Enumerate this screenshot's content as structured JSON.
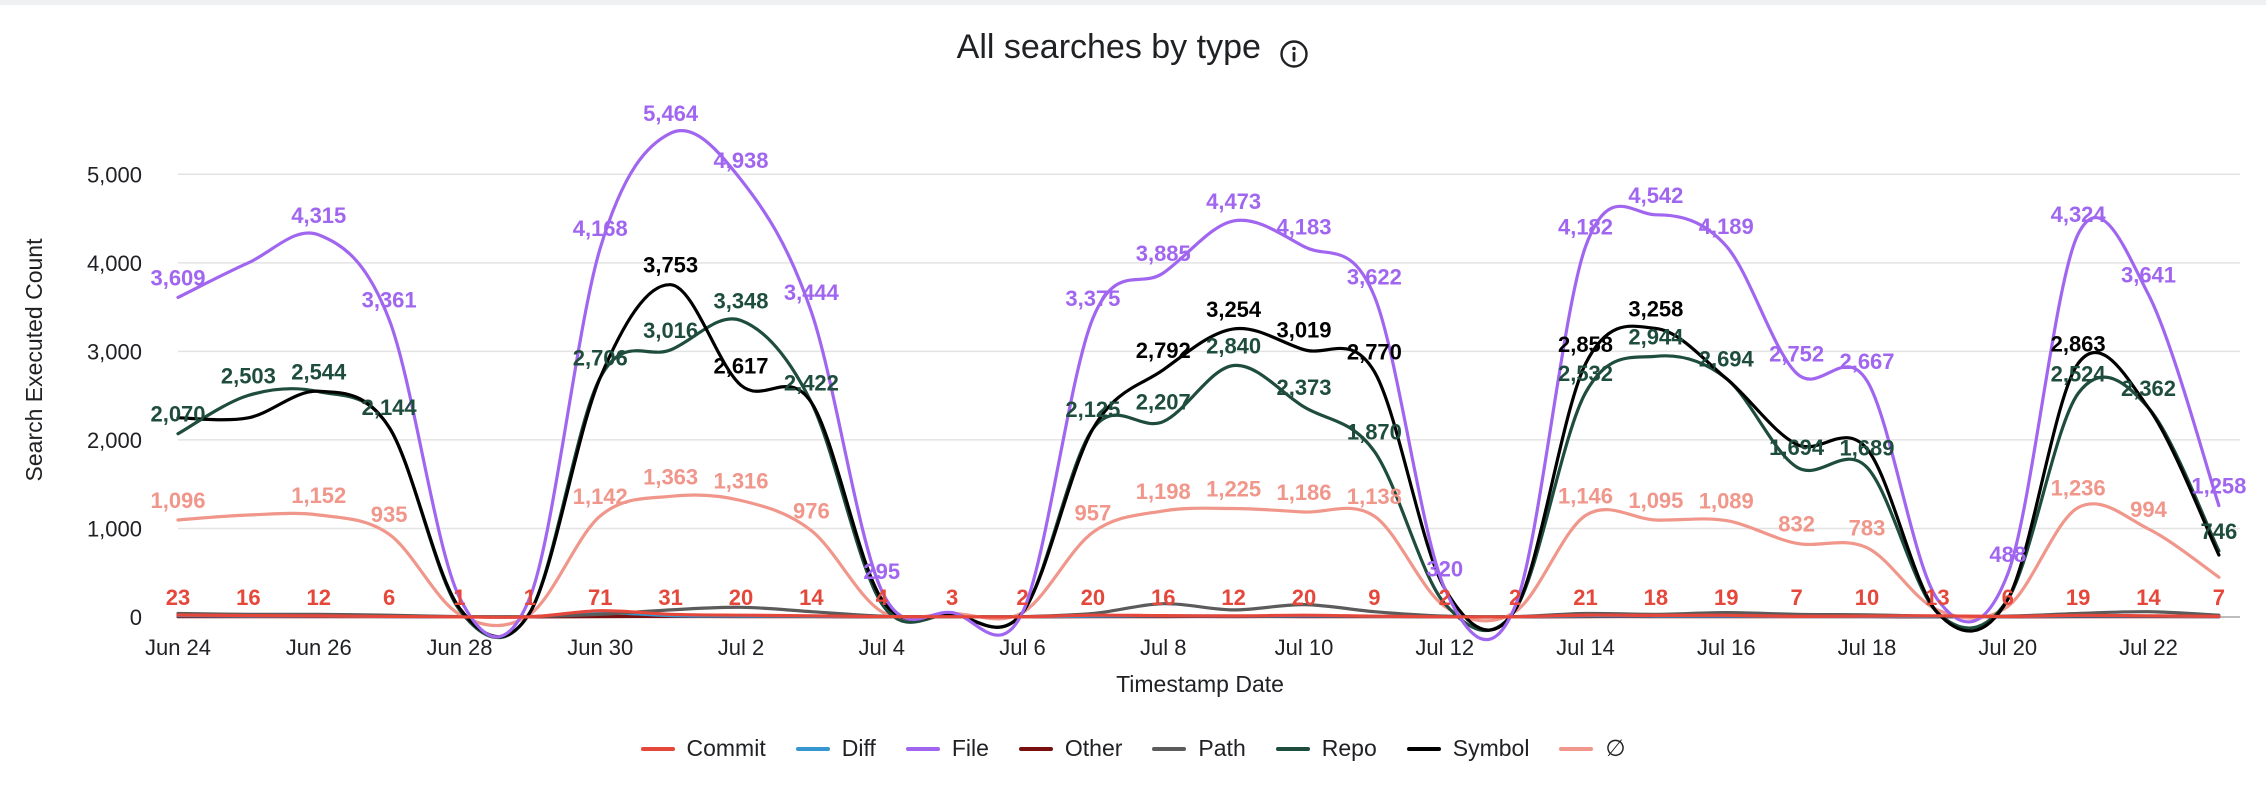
{
  "chart_data": {
    "type": "line",
    "title": "All searches by type",
    "xlabel": "Timestamp Date",
    "ylabel": "Search Executed Count",
    "ylim": [
      0,
      5500
    ],
    "yticks": [
      0,
      1000,
      2000,
      3000,
      4000,
      5000
    ],
    "ytick_labels": [
      "0",
      "1,000",
      "2,000",
      "3,000",
      "4,000",
      "5,000"
    ],
    "x_day_range": [
      0,
      29.3
    ],
    "xtick_days": [
      0,
      2,
      4,
      6,
      8,
      10,
      12,
      14,
      16,
      18,
      20,
      22,
      24,
      26,
      28
    ],
    "xtick_labels": [
      "Jun 24",
      "Jun 26",
      "Jun 28",
      "Jun 30",
      "Jul 2",
      "Jul 4",
      "Jul 6",
      "Jul 8",
      "Jul 10",
      "Jul 12",
      "Jul 14",
      "Jul 16",
      "Jul 18",
      "Jul 20",
      "Jul 22"
    ],
    "days": [
      "Jun 24",
      "Jun 25",
      "Jun 26",
      "Jun 27",
      "Jun 28",
      "Jun 29",
      "Jun 30",
      "Jul 1",
      "Jul 2",
      "Jul 3",
      "Jul 4",
      "Jul 5",
      "Jul 6",
      "Jul 7",
      "Jul 8",
      "Jul 9",
      "Jul 10",
      "Jul 11",
      "Jul 12",
      "Jul 13",
      "Jul 14",
      "Jul 15",
      "Jul 16",
      "Jul 17",
      "Jul 18",
      "Jul 19",
      "Jul 20",
      "Jul 21",
      "Jul 22",
      "Jul 23"
    ],
    "legend_position": "bottom",
    "series": [
      {
        "name": "File",
        "color": "#a166f0",
        "labeled": true,
        "values": [
          3609,
          4000,
          4315,
          3361,
          220,
          220,
          4168,
          5464,
          4938,
          3444,
          295,
          50,
          50,
          3375,
          3885,
          4473,
          4183,
          3622,
          320,
          120,
          4182,
          4542,
          4189,
          2752,
          2667,
          200,
          488,
          4324,
          3641,
          1258
        ],
        "labels": [
          "3,609",
          "",
          "4,315",
          "3,361",
          "",
          "",
          "4,168",
          "5,464",
          "4,938",
          "3,444",
          "295",
          "",
          "",
          "3,375",
          "3,885",
          "4,473",
          "4,183",
          "3,622",
          "320",
          "",
          "4,182",
          "4,542",
          "4,189",
          "2,752",
          "2,667",
          "",
          "488",
          "4,324",
          "3,641",
          "1,258"
        ]
      },
      {
        "name": "Symbol",
        "color": "#000000",
        "labeled": true,
        "values": [
          2250,
          2250,
          2550,
          2144,
          100,
          50,
          2706,
          3753,
          2617,
          2422,
          200,
          30,
          50,
          2125,
          2792,
          3254,
          3019,
          2770,
          320,
          80,
          2858,
          3258,
          2694,
          1950,
          1900,
          50,
          200,
          2863,
          2362,
          700
        ],
        "labels": [
          "",
          "",
          "",
          "",
          "",
          "",
          "",
          "3,753",
          "2,617",
          "",
          "",
          "",
          "",
          "",
          "2,792",
          "3,254",
          "3,019",
          "2,770",
          "",
          "",
          "2,858",
          "3,258",
          "",
          "",
          "",
          "",
          "",
          "2,863",
          "",
          ""
        ]
      },
      {
        "name": "Repo",
        "color": "#1f4d3d",
        "labeled": true,
        "values": [
          2070,
          2503,
          2544,
          2144,
          80,
          50,
          2706,
          3016,
          3348,
          2422,
          150,
          30,
          50,
          2125,
          2207,
          2840,
          2373,
          1870,
          150,
          80,
          2532,
          2944,
          2694,
          1694,
          1689,
          50,
          200,
          2524,
          2362,
          746
        ],
        "labels": [
          "2,070",
          "2,503",
          "2,544",
          "2,144",
          "",
          "",
          "2,706",
          "3,016",
          "3,348",
          "2,422",
          "",
          "",
          "",
          "2,125",
          "2,207",
          "2,840",
          "2,373",
          "1,870",
          "",
          "",
          "2,532",
          "2,944",
          "2,694",
          "1,694",
          "1,689",
          "",
          "",
          "2,524",
          "2,362",
          "746"
        ]
      },
      {
        "name": "∅",
        "color": "#f0968a",
        "labeled": true,
        "values": [
          1096,
          1152,
          1152,
          935,
          30,
          30,
          1142,
          1363,
          1316,
          976,
          60,
          40,
          50,
          957,
          1198,
          1225,
          1186,
          1138,
          120,
          60,
          1146,
          1095,
          1089,
          832,
          783,
          80,
          120,
          1236,
          994,
          450
        ],
        "labels": [
          "1,096",
          "",
          "1,152",
          "935",
          "",
          "",
          "1,142",
          "1,363",
          "1,316",
          "976",
          "",
          "",
          "",
          "957",
          "1,198",
          "1,225",
          "1,186",
          "1,138",
          "",
          "",
          "1,146",
          "1,095",
          "1,089",
          "832",
          "783",
          "",
          "",
          "1,236",
          "994",
          ""
        ]
      },
      {
        "name": "Path",
        "color": "#5b5b5b",
        "labeled": false,
        "values": [
          40,
          30,
          30,
          20,
          5,
          5,
          30,
          80,
          110,
          60,
          10,
          5,
          5,
          40,
          150,
          80,
          140,
          60,
          10,
          5,
          40,
          30,
          50,
          30,
          25,
          10,
          10,
          40,
          60,
          20
        ],
        "labels": []
      },
      {
        "name": "Diff",
        "color": "#3596d0",
        "labeled": false,
        "values": [
          15,
          10,
          10,
          5,
          2,
          2,
          50,
          15,
          10,
          8,
          3,
          2,
          2,
          10,
          12,
          10,
          12,
          8,
          2,
          2,
          12,
          10,
          10,
          6,
          6,
          4,
          4,
          12,
          10,
          5
        ],
        "labels": []
      },
      {
        "name": "Other",
        "color": "#7a0f0f",
        "labeled": false,
        "values": [
          5,
          4,
          4,
          3,
          1,
          1,
          5,
          6,
          5,
          4,
          1,
          1,
          1,
          4,
          5,
          5,
          5,
          4,
          1,
          1,
          5,
          5,
          5,
          3,
          3,
          1,
          1,
          5,
          4,
          2
        ],
        "labels": []
      },
      {
        "name": "Commit",
        "color": "#e5483b",
        "labeled": true,
        "values": [
          23,
          16,
          12,
          6,
          1,
          1,
          71,
          31,
          20,
          14,
          4,
          3,
          2,
          20,
          16,
          12,
          20,
          9,
          2,
          2,
          21,
          18,
          19,
          7,
          10,
          13,
          6,
          19,
          14,
          7
        ],
        "labels": [
          "23",
          "16",
          "12",
          "6",
          "1",
          "1",
          "71",
          "31",
          "20",
          "14",
          "4",
          "3",
          "2",
          "20",
          "16",
          "12",
          "20",
          "9",
          "2",
          "2",
          "21",
          "18",
          "19",
          "7",
          "10",
          "13",
          "6",
          "19",
          "14",
          "7"
        ]
      }
    ]
  },
  "legend": [
    {
      "name": "Commit",
      "color": "#e5483b"
    },
    {
      "name": "Diff",
      "color": "#3596d0"
    },
    {
      "name": "File",
      "color": "#a166f0"
    },
    {
      "name": "Other",
      "color": "#7a0f0f"
    },
    {
      "name": "Path",
      "color": "#5b5b5b"
    },
    {
      "name": "Repo",
      "color": "#1f4d3d"
    },
    {
      "name": "Symbol",
      "color": "#000000"
    },
    {
      "name": "∅",
      "color": "#f0968a"
    }
  ]
}
